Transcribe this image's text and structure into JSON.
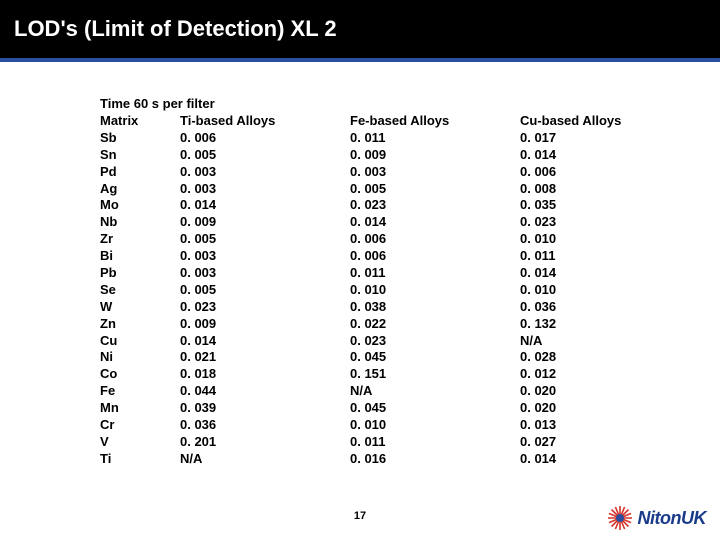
{
  "title": "LOD's (Limit of Detection) XL 2",
  "subheading": "Time 60 s per filter",
  "headers": {
    "matrix": "Matrix",
    "ti": "Ti-based Alloys",
    "fe": "Fe-based Alloys",
    "cu": "Cu-based Alloys"
  },
  "rows": [
    {
      "el": "Sb",
      "ti": "0. 006",
      "fe": "0. 011",
      "cu": "0. 017"
    },
    {
      "el": "Sn",
      "ti": "0. 005",
      "fe": "0. 009",
      "cu": "0. 014"
    },
    {
      "el": "Pd",
      "ti": "0. 003",
      "fe": "0. 003",
      "cu": "0. 006"
    },
    {
      "el": "Ag",
      "ti": "0. 003",
      "fe": "0. 005",
      "cu": "0. 008"
    },
    {
      "el": "Mo",
      "ti": "0. 014",
      "fe": "0. 023",
      "cu": "0. 035"
    },
    {
      "el": "Nb",
      "ti": "0. 009",
      "fe": "0. 014",
      "cu": "0. 023"
    },
    {
      "el": "Zr",
      "ti": "0. 005",
      "fe": "0. 006",
      "cu": "0. 010"
    },
    {
      "el": "Bi",
      "ti": "0. 003",
      "fe": "0. 006",
      "cu": "0. 011"
    },
    {
      "el": "Pb",
      "ti": "0. 003",
      "fe": "0. 011",
      "cu": "0. 014"
    },
    {
      "el": "Se",
      "ti": "0. 005",
      "fe": "0. 010",
      "cu": "0. 010"
    },
    {
      "el": "W",
      "ti": "0. 023",
      "fe": "0. 038",
      "cu": "0. 036"
    },
    {
      "el": "Zn",
      "ti": "0. 009",
      "fe": "0. 022",
      "cu": "0. 132"
    },
    {
      "el": "Cu",
      "ti": "0. 014",
      "fe": "0. 023",
      "cu": "N/A"
    },
    {
      "el": "Ni",
      "ti": "0. 021",
      "fe": "0. 045",
      "cu": "0. 028"
    },
    {
      "el": "Co",
      "ti": "0. 018",
      "fe": "0. 151",
      "cu": "0. 012"
    },
    {
      "el": "Fe",
      "ti": "0. 044",
      "fe": "N/A",
      "cu": "0. 020"
    },
    {
      "el": "Mn",
      "ti": "0. 039",
      "fe": "0. 045",
      "cu": "0. 020"
    },
    {
      "el": "Cr",
      "ti": "0. 036",
      "fe": "0. 010",
      "cu": "0. 013"
    },
    {
      "el": "V",
      "ti": "0. 201",
      "fe": "0. 011",
      "cu": "0. 027"
    },
    {
      "el": "Ti",
      "ti": "N/A",
      "fe": "0. 016",
      "cu": "0. 014"
    }
  ],
  "page_number": "17",
  "logo": {
    "text": "NitonUK",
    "ray_color": "#d4342a",
    "center_color": "#2b4ea0",
    "text_color": "#1a3a8a"
  },
  "colors": {
    "header_bg": "#000000",
    "accent_line": "#2b4ea0",
    "text": "#000000",
    "background": "#ffffff"
  }
}
